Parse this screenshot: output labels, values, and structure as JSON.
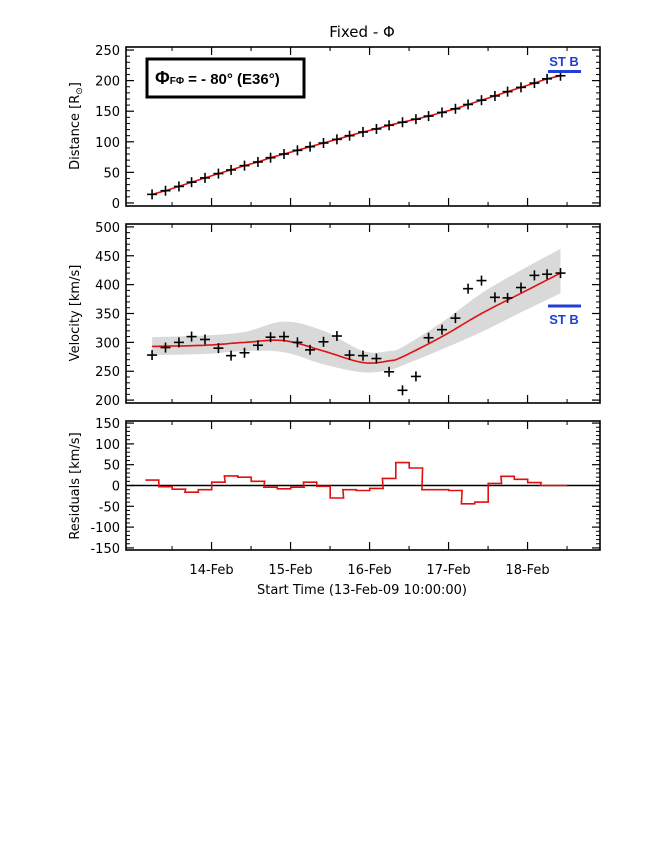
{
  "chart_data": {
    "type": "line",
    "title": "Fixed - Φ",
    "xlabel": "Start Time (13-Feb-09 10:00:00)",
    "x_range_days": [
      -0.5,
      5.5
    ],
    "x_tick_values": [
      0.583,
      1.583,
      2.583,
      3.583,
      4.583
    ],
    "x_tick_labels": [
      "14-Feb",
      "15-Feb",
      "16-Feb",
      "17-Feb",
      "18-Feb"
    ],
    "colors": {
      "fit": "#e01010",
      "band": "#d9d9d9",
      "stb": "#1f3fd6",
      "points": "#000000"
    },
    "panels": [
      {
        "id": "distance",
        "ylabel": "Distance [R",
        "ylabel_sub": "⊙",
        "ylabel_end": "]",
        "ylim": [
          -5,
          255
        ],
        "yticks": [
          0,
          50,
          100,
          150,
          200,
          250
        ],
        "annotation_box": {
          "phi": "Φ",
          "subscript": "FΦ",
          "text": "= - 80° (E36°)"
        },
        "stb_label": "ST B",
        "stb_y": 215,
        "series": [
          {
            "name": "Measured distance",
            "x": [
              -0.17,
              0.0,
              0.17,
              0.33,
              0.5,
              0.67,
              0.83,
              1.0,
              1.17,
              1.33,
              1.5,
              1.67,
              1.83,
              2.0,
              2.17,
              2.33,
              2.5,
              2.67,
              2.83,
              3.0,
              3.17,
              3.33,
              3.5,
              3.67,
              3.83,
              4.0,
              4.17,
              4.33,
              4.5,
              4.67,
              4.83,
              5.0
            ],
            "y": [
              14,
              20,
              27,
              34,
              41,
              48,
              54,
              61,
              67,
              74,
              80,
              86,
              92,
              98,
              104,
              110,
              116,
              121,
              127,
              132,
              137,
              142,
              148,
              154,
              161,
              168,
              175,
              182,
              189,
              196,
              203,
              208
            ]
          }
        ]
      },
      {
        "id": "velocity",
        "ylabel": "Velocity [km/s]",
        "ylim": [
          195,
          505
        ],
        "yticks": [
          200,
          250,
          300,
          350,
          400,
          450,
          500
        ],
        "stb_label": "ST B",
        "stb_y": 363,
        "series": [
          {
            "name": "Velocity points",
            "x": [
              -0.17,
              0.0,
              0.17,
              0.33,
              0.5,
              0.67,
              0.83,
              1.0,
              1.17,
              1.33,
              1.5,
              1.67,
              1.83,
              2.0,
              2.17,
              2.33,
              2.5,
              2.67,
              2.83,
              3.0,
              3.17,
              3.33,
              3.5,
              3.67,
              3.83,
              4.0,
              4.17,
              4.33,
              4.5,
              4.67,
              4.83,
              5.0
            ],
            "y": [
              278,
              291,
              300,
              310,
              305,
              290,
              277,
              282,
              295,
              309,
              310,
              300,
              287,
              301,
              311,
              278,
              277,
              272,
              249,
              217,
              241,
              308,
              322,
              342,
              393,
              407,
              378,
              377,
              395,
              416,
              418,
              420
            ]
          },
          {
            "name": "Fit",
            "x": [
              -0.17,
              0.5,
              1.0,
              1.5,
              2.0,
              2.5,
              2.83,
              3.0,
              3.5,
              4.0,
              4.5,
              5.0
            ],
            "y": [
              293,
              295,
              300,
              303,
              285,
              265,
              268,
              275,
              310,
              350,
              385,
              420
            ]
          },
          {
            "name": "Uncertainty upper",
            "x": [
              -0.17,
              0.5,
              1.0,
              1.5,
              2.0,
              2.5,
              2.83,
              3.0,
              3.5,
              4.0,
              4.5,
              5.0
            ],
            "y": [
              309,
              312,
              318,
              336,
              320,
              285,
              285,
              292,
              335,
              385,
              425,
              462
            ]
          },
          {
            "name": "Uncertainty lower",
            "x": [
              -0.17,
              0.5,
              1.0,
              1.5,
              2.0,
              2.5,
              2.83,
              3.0,
              3.5,
              4.0,
              4.5,
              5.0
            ],
            "y": [
              278,
              280,
              285,
              283,
              262,
              248,
              252,
              260,
              288,
              318,
              352,
              385
            ]
          }
        ]
      },
      {
        "id": "residuals",
        "ylabel": "Residuals [km/s]",
        "ylim": [
          -155,
          155
        ],
        "yticks": [
          -150,
          -100,
          -50,
          0,
          50,
          100,
          150
        ],
        "series": [
          {
            "name": "Residuals",
            "type": "step",
            "x": [
              -0.17,
              0.0,
              0.17,
              0.33,
              0.5,
              0.67,
              0.83,
              1.0,
              1.17,
              1.33,
              1.5,
              1.67,
              1.83,
              2.0,
              2.17,
              2.33,
              2.5,
              2.67,
              2.83,
              3.0,
              3.17,
              3.33,
              3.5,
              3.67,
              3.83,
              4.0,
              4.17,
              4.33,
              4.5,
              4.67,
              4.83,
              5.0
            ],
            "y": [
              13,
              -3,
              -9,
              -16,
              -10,
              8,
              23,
              20,
              10,
              -4,
              -8,
              -4,
              8,
              -2,
              -30,
              -10,
              -12,
              -7,
              17,
              55,
              42,
              -10,
              -10,
              -12,
              -44,
              -40,
              5,
              22,
              15,
              7,
              0,
              0
            ]
          }
        ]
      }
    ]
  }
}
